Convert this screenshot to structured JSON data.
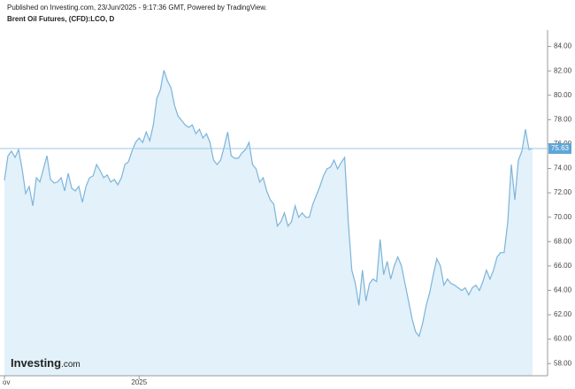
{
  "header": {
    "published": "Published on Investing.com, 23/Jun/2025 - 9:17:36 GMT, Powered by TradingView.",
    "instrument": "Brent Oil Futures, (CFD):LCO, D"
  },
  "logo": {
    "name": "Investing",
    "suffix": ".com"
  },
  "chart_data": {
    "type": "area",
    "categories": [
      "ov",
      null,
      null,
      null,
      null,
      null,
      null,
      null,
      null,
      null,
      null,
      null,
      null,
      null,
      null,
      null,
      null,
      null,
      null,
      null,
      null,
      null,
      null,
      null,
      null,
      null,
      null,
      null,
      null,
      null,
      null,
      null,
      null,
      null,
      null,
      null,
      null,
      null,
      "2025",
      null,
      null,
      null,
      null,
      null,
      null,
      null,
      null,
      null,
      null,
      null,
      null,
      null,
      null,
      null,
      null,
      null,
      null,
      null,
      null,
      null,
      null,
      null,
      null,
      null,
      null,
      null,
      null,
      null,
      null,
      null,
      null,
      null,
      null,
      null,
      null,
      null,
      null,
      null,
      null,
      null,
      null,
      null,
      null,
      null,
      null,
      null,
      null,
      null,
      null,
      null,
      null,
      null,
      null,
      null,
      null,
      null,
      null,
      null,
      null,
      null,
      null,
      null,
      null,
      null,
      null,
      null,
      null,
      null,
      null,
      null,
      null,
      null,
      null,
      null,
      null,
      null,
      null,
      null,
      null,
      null,
      null,
      null,
      null,
      null,
      null,
      null,
      null,
      null,
      null,
      null,
      null,
      null,
      null,
      null,
      null,
      null,
      null,
      null,
      null,
      null,
      null,
      null,
      null,
      null,
      null,
      null,
      null,
      null,
      null,
      null
    ],
    "values": [
      73.02,
      75.04,
      75.41,
      74.9,
      75.55,
      73.96,
      71.94,
      72.52,
      70.93,
      73.24,
      72.88,
      73.96,
      75.04,
      73.09,
      72.81,
      72.88,
      73.24,
      72.16,
      73.6,
      72.37,
      72.16,
      72.52,
      71.22,
      72.52,
      73.24,
      73.38,
      74.32,
      73.82,
      73.24,
      73.46,
      72.88,
      73.09,
      72.66,
      73.24,
      74.32,
      74.54,
      75.41,
      76.13,
      76.49,
      76.13,
      76.99,
      76.27,
      77.57,
      79.74,
      80.46,
      82.05,
      81.18,
      80.61,
      79.16,
      78.29,
      77.93,
      77.57,
      77.36,
      77.57,
      76.85,
      77.21,
      76.49,
      76.85,
      76.13,
      74.68,
      74.32,
      74.68,
      75.77,
      76.99,
      75.04,
      74.83,
      74.83,
      75.26,
      75.55,
      76.13,
      74.32,
      73.96,
      72.88,
      73.24,
      72.16,
      71.43,
      71.07,
      69.27,
      69.63,
      70.35,
      69.27,
      69.63,
      70.93,
      69.99,
      70.35,
      69.99,
      69.99,
      71.07,
      71.79,
      72.52,
      73.38,
      73.96,
      74.11,
      74.68,
      73.96,
      74.47,
      74.9,
      69.63,
      65.66,
      64.57,
      62.77,
      65.66,
      63.13,
      64.57,
      64.93,
      64.72,
      68.18,
      65.29,
      66.38,
      64.93,
      66.02,
      66.74,
      66.02,
      64.57,
      63.13,
      61.68,
      60.6,
      60.24,
      61.32,
      62.77,
      63.85,
      65.29,
      66.59,
      66.02,
      64.43,
      64.93,
      64.57,
      64.43,
      64.21,
      63.99,
      64.21,
      63.63,
      64.21,
      64.43,
      63.99,
      64.72,
      65.66,
      64.93,
      65.66,
      66.74,
      67.1,
      67.1,
      69.63,
      74.32,
      71.43,
      74.68,
      75.41,
      77.21,
      75.55,
      75.63
    ],
    "last_value": 75.63,
    "color": "#7db4da",
    "fill": "#e2f1fa",
    "ylim": [
      57,
      85.2
    ],
    "yticks": [
      {
        "value": 58,
        "label": "58.00"
      },
      {
        "value": 60,
        "label": "60.00"
      },
      {
        "value": 62,
        "label": "62.00"
      },
      {
        "value": 64,
        "label": "64.00"
      },
      {
        "value": 66,
        "label": "66.00"
      },
      {
        "value": 68,
        "label": "68.00"
      },
      {
        "value": 70,
        "label": "70.00"
      },
      {
        "value": 72,
        "label": "72.00"
      },
      {
        "value": 74,
        "label": "74.00"
      },
      {
        "value": 76,
        "label": "76.00"
      },
      {
        "value": 78,
        "label": "78.00"
      },
      {
        "value": 80,
        "label": "80.00"
      },
      {
        "value": 82,
        "label": "82.00"
      },
      {
        "value": 84,
        "label": "84.00"
      }
    ]
  }
}
